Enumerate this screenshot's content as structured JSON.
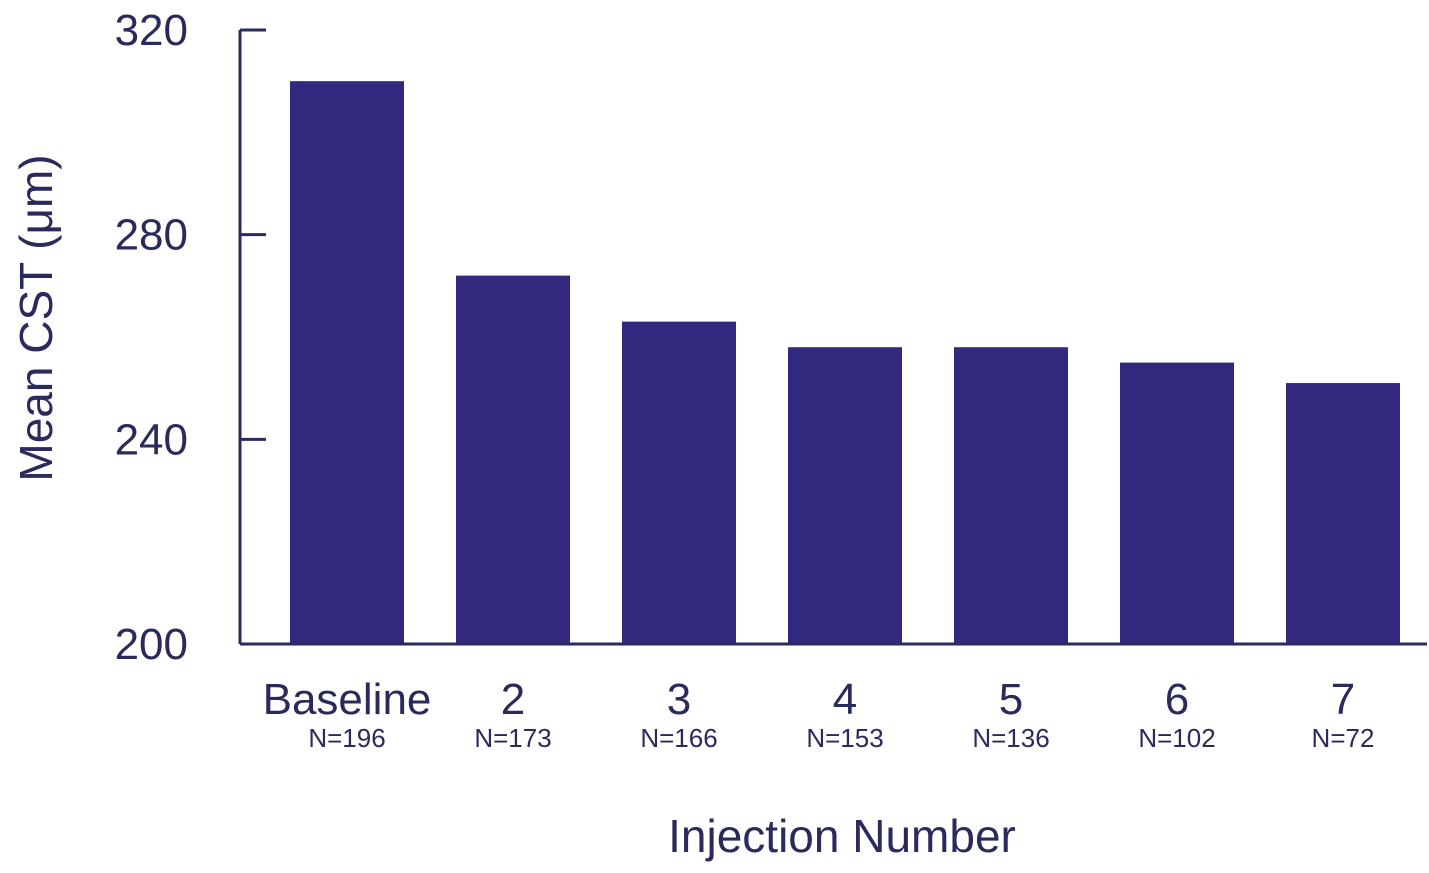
{
  "chart_data": {
    "type": "bar",
    "categories": [
      "Baseline",
      "2",
      "3",
      "4",
      "5",
      "6",
      "7"
    ],
    "sample_sizes": [
      "N=196",
      "N=173",
      "N=166",
      "N=153",
      "N=136",
      "N=102",
      "N=72"
    ],
    "values": [
      310,
      272,
      263,
      258,
      258,
      255,
      251
    ],
    "title": "",
    "xlabel": "Injection Number",
    "ylabel": "Mean CST (μm)",
    "ylim": [
      200,
      320
    ],
    "yticks": [
      200,
      240,
      280,
      320
    ],
    "grid": false,
    "legend": "none",
    "colors": {
      "bar": "#32287d",
      "axis": "#2b2a5c",
      "text": "#2b2a5c"
    }
  }
}
